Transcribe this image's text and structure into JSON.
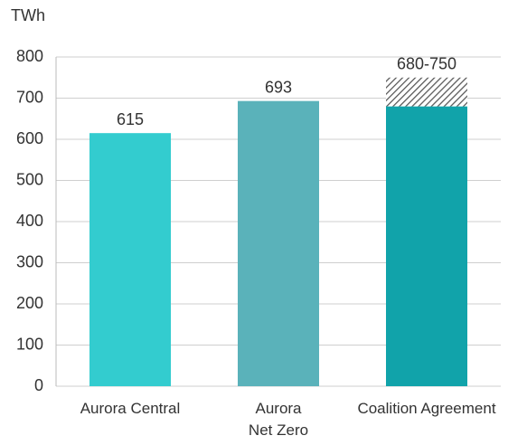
{
  "chart_data": {
    "type": "bar",
    "y_unit": "TWh",
    "categories": [
      "Aurora Central",
      "Aurora\nNet Zero",
      "Coalition Agreement"
    ],
    "values": [
      615,
      693,
      680
    ],
    "value_labels": [
      "615",
      "693",
      "680-750"
    ],
    "colors": [
      "#33cccf",
      "#5ab2ba",
      "#11a3aa"
    ],
    "hatched_segment": {
      "values": [
        null,
        null,
        70
      ],
      "color": "#555555"
    },
    "ylim": [
      0,
      800
    ],
    "yticks": [
      0,
      100,
      200,
      300,
      400,
      500,
      600,
      700,
      800
    ],
    "grid": true
  }
}
